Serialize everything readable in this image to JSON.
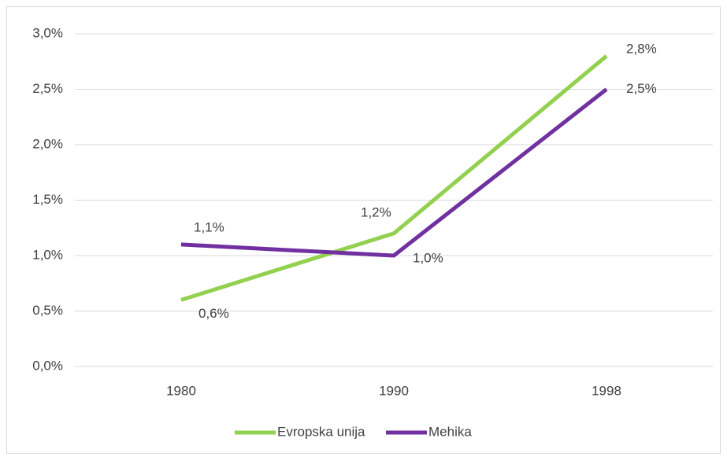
{
  "chart_data": {
    "type": "line",
    "categories": [
      "1980",
      "1990",
      "1998"
    ],
    "series": [
      {
        "name": "Evropska unija",
        "color": "#92d050",
        "values": [
          0.6,
          1.2,
          2.8
        ],
        "value_labels": [
          "0,6%",
          "1,2%",
          "2,8%"
        ]
      },
      {
        "name": "Mehika",
        "color": "#7030a0",
        "values": [
          1.1,
          1.0,
          2.5
        ],
        "value_labels": [
          "1,1%",
          "1,0%",
          "2,5%"
        ]
      }
    ],
    "ylim": [
      0,
      3
    ],
    "yticks": [
      {
        "value": 0,
        "label": "0,0%"
      },
      {
        "value": 0.5,
        "label": "0,5%"
      },
      {
        "value": 1,
        "label": "1,0%"
      },
      {
        "value": 1.5,
        "label": "1,5%"
      },
      {
        "value": 2,
        "label": "2,0%"
      },
      {
        "value": 2.5,
        "label": "2,5%"
      },
      {
        "value": 3,
        "label": "3,0%"
      }
    ],
    "grid": true,
    "legend": "bottom"
  }
}
